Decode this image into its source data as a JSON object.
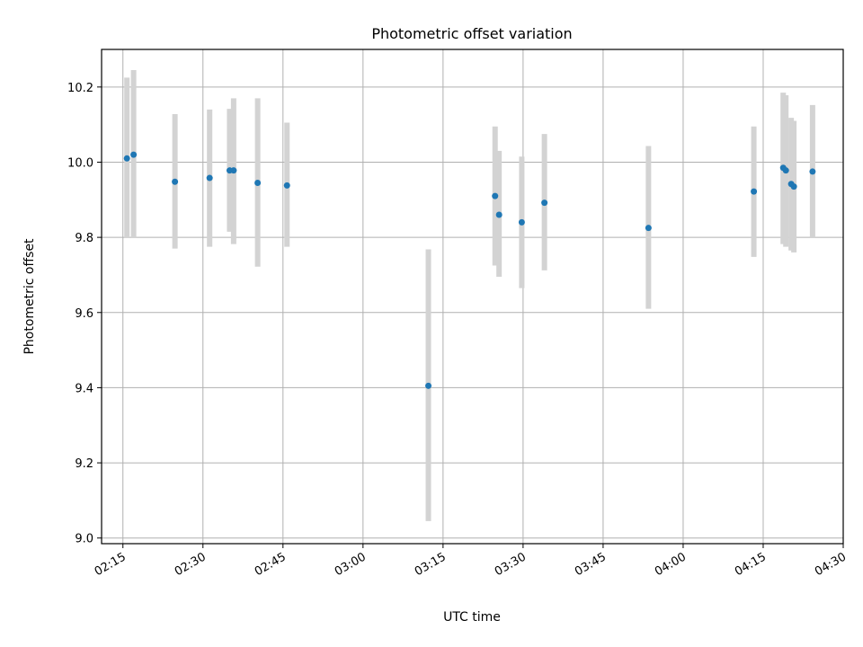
{
  "chart_data": {
    "type": "scatter",
    "title": "Photometric offset variation",
    "xlabel": "UTC time",
    "ylabel": "Photometric offset",
    "x_axis_type": "time",
    "xlim": [
      "02:11",
      "04:30"
    ],
    "ylim": [
      8.985,
      10.3
    ],
    "x_ticks": [
      "02:15",
      "02:30",
      "02:45",
      "03:00",
      "03:15",
      "03:30",
      "03:45",
      "04:00",
      "04:15",
      "04:30"
    ],
    "y_ticks": [
      9.0,
      9.2,
      9.4,
      9.6,
      9.8,
      10.0,
      10.2
    ],
    "grid": true,
    "colors": {
      "points": "#1f77b4",
      "error_bars": "#d3d3d3",
      "grid": "#b0b0b0"
    },
    "points": [
      {
        "x": "02:15:45",
        "y": 10.01,
        "ylow": 9.8,
        "yhigh": 10.225
      },
      {
        "x": "02:17:00",
        "y": 10.02,
        "ylow": 9.8,
        "yhigh": 10.245
      },
      {
        "x": "02:24:45",
        "y": 9.948,
        "ylow": 9.77,
        "yhigh": 10.128
      },
      {
        "x": "02:31:15",
        "y": 9.958,
        "ylow": 9.775,
        "yhigh": 10.14
      },
      {
        "x": "02:35:00",
        "y": 9.978,
        "ylow": 9.815,
        "yhigh": 10.142
      },
      {
        "x": "02:35:45",
        "y": 9.978,
        "ylow": 9.782,
        "yhigh": 10.17
      },
      {
        "x": "02:40:15",
        "y": 9.945,
        "ylow": 9.722,
        "yhigh": 10.17
      },
      {
        "x": "02:45:45",
        "y": 9.938,
        "ylow": 9.775,
        "yhigh": 10.105
      },
      {
        "x": "03:12:15",
        "y": 9.405,
        "ylow": 9.045,
        "yhigh": 9.768
      },
      {
        "x": "03:24:45",
        "y": 9.91,
        "ylow": 9.725,
        "yhigh": 10.095
      },
      {
        "x": "03:25:30",
        "y": 9.86,
        "ylow": 9.695,
        "yhigh": 10.03
      },
      {
        "x": "03:29:45",
        "y": 9.84,
        "ylow": 9.665,
        "yhigh": 10.015
      },
      {
        "x": "03:34:00",
        "y": 9.892,
        "ylow": 9.712,
        "yhigh": 10.075
      },
      {
        "x": "03:53:30",
        "y": 9.825,
        "ylow": 9.61,
        "yhigh": 10.043
      },
      {
        "x": "04:13:15",
        "y": 9.922,
        "ylow": 9.748,
        "yhigh": 10.095
      },
      {
        "x": "04:18:45",
        "y": 9.985,
        "ylow": 9.782,
        "yhigh": 10.185
      },
      {
        "x": "04:19:15",
        "y": 9.978,
        "ylow": 9.775,
        "yhigh": 10.178
      },
      {
        "x": "04:20:15",
        "y": 9.942,
        "ylow": 9.765,
        "yhigh": 10.118
      },
      {
        "x": "04:20:45",
        "y": 9.935,
        "ylow": 9.76,
        "yhigh": 10.11
      },
      {
        "x": "04:24:15",
        "y": 9.975,
        "ylow": 9.8,
        "yhigh": 10.152
      }
    ]
  }
}
